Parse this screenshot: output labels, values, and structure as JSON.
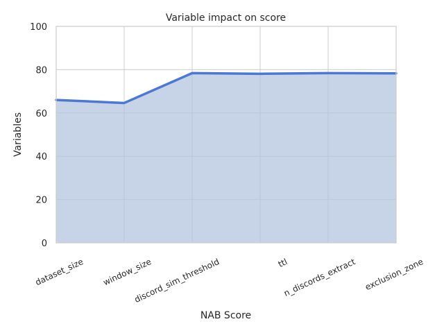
{
  "chart_data": {
    "type": "area",
    "title": "Variable impact on score",
    "xlabel": "NAB Score",
    "ylabel": "Variables",
    "categories": [
      "dataset_size",
      "window_size",
      "discord_sim_threshold",
      "ttl",
      "n_discords_extract",
      "exclusion_zone"
    ],
    "series": [
      {
        "values": [
          66,
          64.6,
          78.4,
          78.1,
          78.4,
          78.3
        ]
      }
    ],
    "ylim": [
      0,
      100
    ],
    "yticks": [
      "0",
      "20",
      "40",
      "60",
      "80",
      "100"
    ],
    "grid": true,
    "legend": "none",
    "colors": {
      "line": "#4a78d4",
      "fill": "#b4c4de",
      "grid": "#cccccc"
    }
  }
}
